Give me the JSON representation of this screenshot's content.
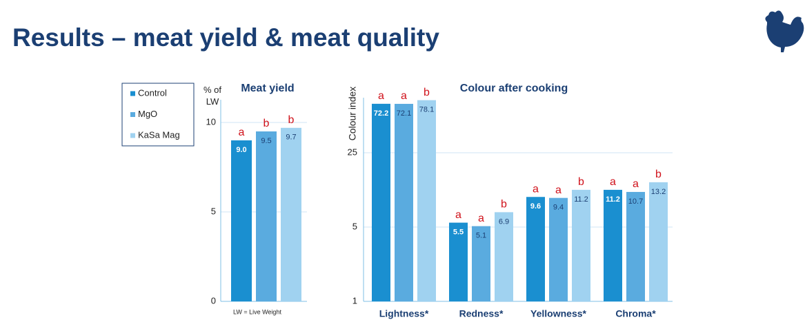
{
  "title": "Results – meat yield & meat quality",
  "note": "LW = Live Weight",
  "chart_data": [
    {
      "type": "bar",
      "title": "Meat yield",
      "y_label": "% of LW",
      "categories": [
        null
      ],
      "series": [
        {
          "name": "Control",
          "color": "#1a8fd0",
          "values": [
            9.0
          ],
          "value_labels": [
            "9.0"
          ],
          "letters": [
            "a"
          ]
        },
        {
          "name": "MgO",
          "color": "#5aabdf",
          "values": [
            9.5
          ],
          "value_labels": [
            "9.5"
          ],
          "letters": [
            "b"
          ]
        },
        {
          "name": "KaSa Mag",
          "color": "#a0d2f0",
          "values": [
            9.7
          ],
          "value_labels": [
            "9.7"
          ],
          "letters": [
            "b"
          ]
        }
      ],
      "ylim": [
        0,
        11
      ],
      "yticks": [
        0,
        5,
        10
      ],
      "grid": true,
      "log_scale": false
    },
    {
      "type": "bar",
      "title": "Colour after cooking",
      "y_label": "Colour index",
      "categories": [
        "Lightness*",
        "Redness*",
        "Yellowness*",
        "Chroma*"
      ],
      "series": [
        {
          "color": "#1a8fd0",
          "values": [
            72.2,
            5.5,
            9.6,
            11.2
          ],
          "value_labels": [
            "72.2",
            "5.5",
            "9.6",
            "11.2"
          ],
          "letters": [
            "a",
            "a",
            "a",
            "a"
          ]
        },
        {
          "color": "#5aabdf",
          "values": [
            72.1,
            5.1,
            9.4,
            10.7
          ],
          "value_labels": [
            "72.1",
            "5.1",
            "9.4",
            "10.7"
          ],
          "letters": [
            "a",
            "a",
            "a",
            "a"
          ]
        },
        {
          "color": "#a0d2f0",
          "values": [
            78.1,
            6.9,
            11.2,
            13.2
          ],
          "value_labels": [
            "78.1",
            "6.9",
            "11.2",
            "13.2"
          ],
          "letters": [
            "b",
            "b",
            "b",
            "b"
          ]
        }
      ],
      "ylim": [
        1,
        100
      ],
      "yticks": [
        1,
        5,
        25
      ],
      "grid": true,
      "log_scale": true
    }
  ]
}
